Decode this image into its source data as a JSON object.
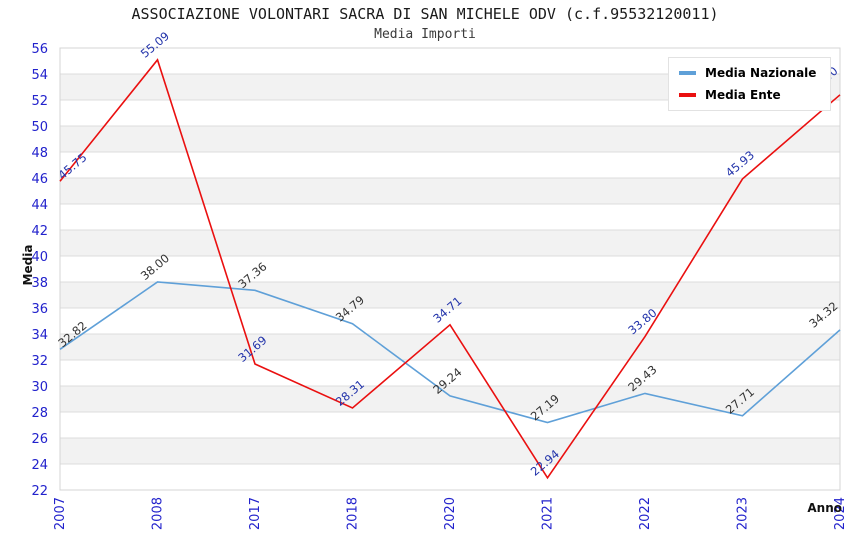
{
  "header": {
    "title": "ASSOCIAZIONE VOLONTARI SACRA DI SAN MICHELE ODV (c.f.95532120011)",
    "subtitle": "Media Importi"
  },
  "axes": {
    "y_label": "Media",
    "x_label": "Anno"
  },
  "chart_data": {
    "type": "line",
    "title": "ASSOCIAZIONE VOLONTARI SACRA DI SAN MICHELE ODV (c.f.95532120011)",
    "subtitle": "Media Importi",
    "xlabel": "Anno",
    "ylabel": "Media",
    "categories": [
      "2007",
      "2008",
      "2017",
      "2018",
      "2020",
      "2021",
      "2022",
      "2023",
      "2024"
    ],
    "series": [
      {
        "name": "Media Nazionale",
        "color": "#5FA0D8",
        "label_color": "#333333",
        "values": [
          32.82,
          38.0,
          37.36,
          34.79,
          29.24,
          27.19,
          29.43,
          27.71,
          34.32
        ]
      },
      {
        "name": "Media Ente",
        "color": "#EA1010",
        "label_color": "#2233AA",
        "values": [
          45.75,
          55.09,
          31.69,
          28.31,
          34.71,
          22.94,
          33.8,
          45.93,
          52.4
        ]
      }
    ],
    "ylim": [
      22,
      56
    ],
    "ytick_step": 2,
    "grid": true,
    "legend_position": "top-right",
    "style": {
      "band_color": "#F2F2F2",
      "grid_color": "#DCDCDC",
      "border_color": "#D4D4D4",
      "tick_color": "#2222CC"
    }
  }
}
